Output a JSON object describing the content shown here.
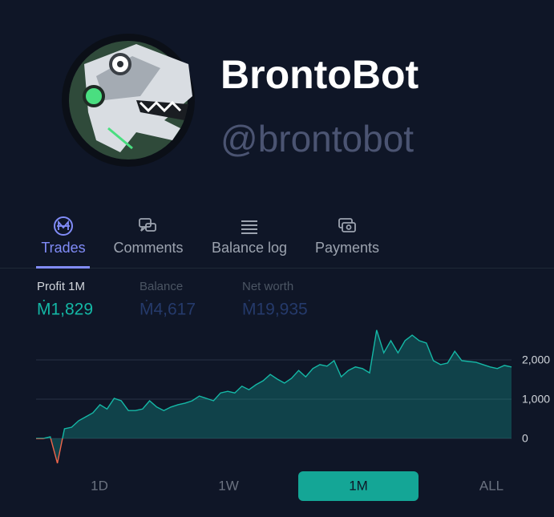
{
  "profile": {
    "name": "BrontoBot",
    "handle": "@brontobot"
  },
  "tabs": [
    {
      "label": "Trades",
      "active": true
    },
    {
      "label": "Comments"
    },
    {
      "label": "Balance log"
    },
    {
      "label": "Payments"
    }
  ],
  "stats": [
    {
      "label": "Profit 1M",
      "value": "Ṁ1,829"
    },
    {
      "label": "Balance",
      "value": "Ṁ4,617"
    },
    {
      "label": "Net worth",
      "value": "Ṁ19,935"
    }
  ],
  "chart_data": {
    "type": "area",
    "color": "#14b8a6",
    "negative_color": "#f0654a",
    "grid": true,
    "values": [
      0,
      0,
      40,
      -630,
      245,
      285,
      450,
      550,
      650,
      860,
      750,
      1020,
      960,
      710,
      710,
      750,
      960,
      800,
      710,
      800,
      860,
      900,
      960,
      1080,
      1020,
      960,
      1160,
      1200,
      1160,
      1330,
      1240,
      1370,
      1470,
      1630,
      1510,
      1410,
      1530,
      1730,
      1570,
      1780,
      1880,
      1840,
      1980,
      1570,
      1730,
      1820,
      1780,
      1670,
      2760,
      2180,
      2490,
      2180,
      2490,
      2630,
      2490,
      2430,
      1980,
      1880,
      1920,
      2220,
      1980,
      1960,
      1940,
      1880,
      1820,
      1780,
      1860,
      1820
    ],
    "ylim": [
      -700,
      2800
    ],
    "yticks": [
      0,
      {
        "value": 1000,
        "label": "1,000"
      },
      {
        "value": 2000,
        "label": "2,000"
      }
    ]
  },
  "time_ranges": [
    {
      "label": "1D"
    },
    {
      "label": "1W"
    },
    {
      "label": "1M",
      "active": true
    },
    {
      "label": "ALL"
    }
  ]
}
